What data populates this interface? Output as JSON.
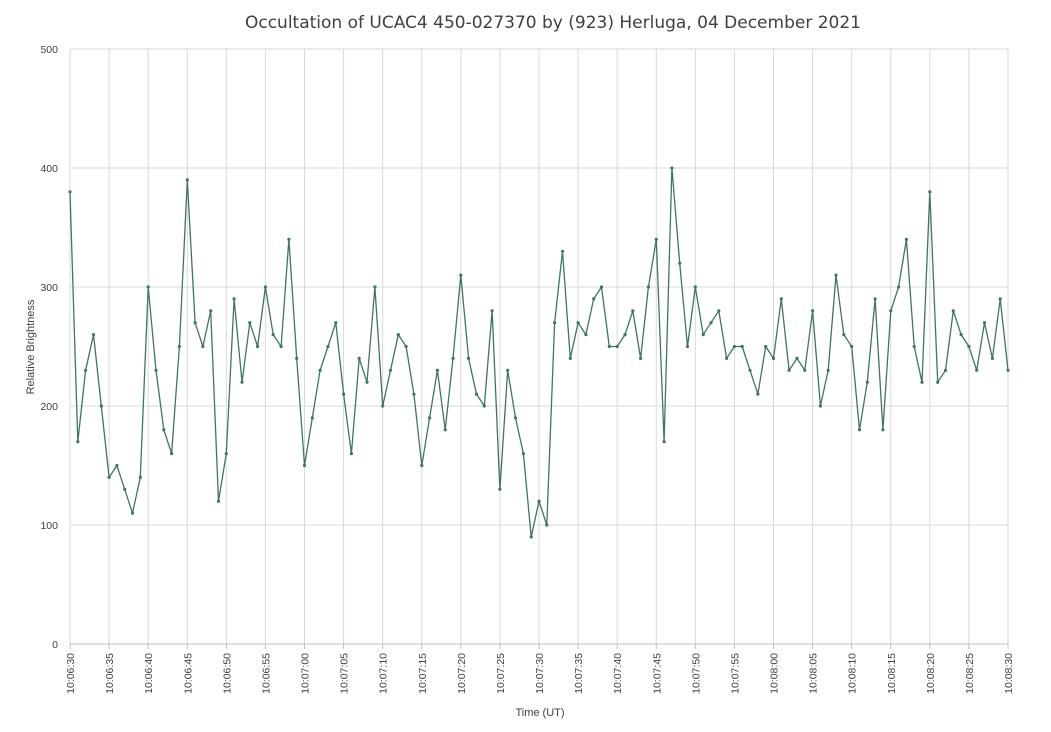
{
  "chart_data": {
    "type": "line",
    "title": "Occultation of UCAC4 450-027370 by (923) Herluga, 04 December 2021",
    "xlabel": "Time (UT)",
    "ylabel": "Relative Brightness",
    "ylim": [
      0,
      500
    ],
    "y_ticks": [
      "0",
      "100",
      "200",
      "300",
      "400",
      "500"
    ],
    "x_ticks": [
      "10:06:30",
      "10:06:35",
      "10:06:40",
      "10:06:45",
      "10:06:50",
      "10:06:55",
      "10:07:00",
      "10:07:05",
      "10:07:10",
      "10:07:15",
      "10:07:20",
      "10:07:25",
      "10:07:30",
      "10:07:35",
      "10:07:40",
      "10:07:45",
      "10:07:50",
      "10:07:55",
      "10:08:00",
      "10:08:05",
      "10:08:10",
      "10:08:15",
      "10:08:20",
      "10:08:25",
      "10:08:30"
    ],
    "grid": true,
    "legend": "none",
    "series": [
      {
        "color": "#3e7566",
        "x": [
          "10:06:30",
          "10:06:31",
          "10:06:32",
          "10:06:33",
          "10:06:34",
          "10:06:35",
          "10:06:36",
          "10:06:37",
          "10:06:38",
          "10:06:39",
          "10:06:40",
          "10:06:41",
          "10:06:42",
          "10:06:43",
          "10:06:44",
          "10:06:45",
          "10:06:46",
          "10:06:47",
          "10:06:48",
          "10:06:49",
          "10:06:50",
          "10:06:51",
          "10:06:52",
          "10:06:53",
          "10:06:54",
          "10:06:55",
          "10:06:56",
          "10:06:57",
          "10:06:58",
          "10:06:59",
          "10:07:00",
          "10:07:01",
          "10:07:02",
          "10:07:03",
          "10:07:04",
          "10:07:05",
          "10:07:06",
          "10:07:07",
          "10:07:08",
          "10:07:09",
          "10:07:10",
          "10:07:11",
          "10:07:12",
          "10:07:13",
          "10:07:14",
          "10:07:15",
          "10:07:16",
          "10:07:17",
          "10:07:18",
          "10:07:19",
          "10:07:20",
          "10:07:21",
          "10:07:22",
          "10:07:23",
          "10:07:24",
          "10:07:25",
          "10:07:26",
          "10:07:27",
          "10:07:28",
          "10:07:29",
          "10:07:30",
          "10:07:31",
          "10:07:32",
          "10:07:33",
          "10:07:34",
          "10:07:35",
          "10:07:36",
          "10:07:37",
          "10:07:38",
          "10:07:39",
          "10:07:40",
          "10:07:41",
          "10:07:42",
          "10:07:43",
          "10:07:44",
          "10:07:45",
          "10:07:46",
          "10:07:47",
          "10:07:48",
          "10:07:49",
          "10:07:50",
          "10:07:51",
          "10:07:52",
          "10:07:53",
          "10:07:54",
          "10:07:55",
          "10:07:56",
          "10:07:57",
          "10:07:58",
          "10:07:59",
          "10:08:00",
          "10:08:01",
          "10:08:02",
          "10:08:03",
          "10:08:04",
          "10:08:05",
          "10:08:06",
          "10:08:07",
          "10:08:08",
          "10:08:09",
          "10:08:10",
          "10:08:11",
          "10:08:12",
          "10:08:13",
          "10:08:14",
          "10:08:15",
          "10:08:16",
          "10:08:17",
          "10:08:18",
          "10:08:19",
          "10:08:20",
          "10:08:21",
          "10:08:22",
          "10:08:23",
          "10:08:24",
          "10:08:25",
          "10:08:26",
          "10:08:27",
          "10:08:28",
          "10:08:29",
          "10:08:30"
        ],
        "y": [
          380,
          170,
          230,
          260,
          200,
          140,
          150,
          130,
          110,
          140,
          300,
          230,
          180,
          160,
          250,
          390,
          270,
          250,
          280,
          120,
          160,
          290,
          220,
          270,
          250,
          300,
          260,
          250,
          340,
          240,
          150,
          190,
          230,
          250,
          270,
          210,
          160,
          240,
          220,
          300,
          200,
          230,
          260,
          250,
          210,
          150,
          190,
          230,
          180,
          240,
          310,
          240,
          210,
          200,
          280,
          130,
          230,
          190,
          160,
          90,
          120,
          100,
          270,
          330,
          240,
          270,
          260,
          290,
          300,
          250,
          250,
          260,
          280,
          240,
          300,
          340,
          170,
          400,
          320,
          250,
          300,
          260,
          270,
          280,
          240,
          250,
          250,
          230,
          210,
          250,
          240,
          290,
          230,
          240,
          230,
          280,
          200,
          230,
          310,
          260,
          250,
          180,
          220,
          290,
          180,
          280,
          300,
          340,
          250,
          220,
          380,
          220,
          230,
          280,
          260,
          250,
          230,
          270,
          240,
          290,
          230
        ]
      }
    ]
  }
}
